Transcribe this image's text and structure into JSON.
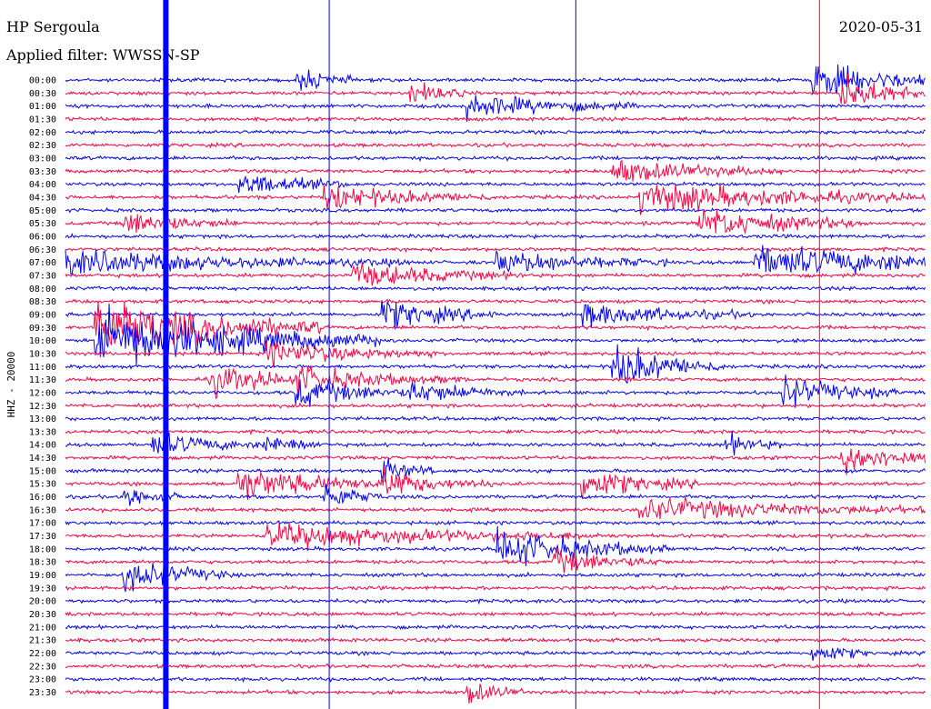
{
  "header": {
    "station": "HP Sergoula",
    "filter": "Applied filter: WWSSN-SP",
    "date": "2020-05-31"
  },
  "chart_data": {
    "type": "line",
    "title": "HP Sergoula",
    "subtitle": "Applied filter: WWSSN-SP",
    "ylabel": "HHZ - 20000",
    "xlabel": "",
    "date": "2020-05-31",
    "row_labels": [
      "00:00",
      "00:30",
      "01:00",
      "01:30",
      "02:00",
      "02:30",
      "03:00",
      "03:30",
      "04:00",
      "04:30",
      "05:00",
      "05:30",
      "06:00",
      "06:30",
      "07:00",
      "07:30",
      "08:00",
      "08:30",
      "09:00",
      "09:30",
      "10:00",
      "10:30",
      "11:00",
      "11:30",
      "12:00",
      "12:30",
      "13:00",
      "13:30",
      "14:00",
      "14:30",
      "15:00",
      "15:30",
      "16:00",
      "16:30",
      "17:00",
      "17:30",
      "18:00",
      "18:30",
      "19:00",
      "19:30",
      "20:00",
      "20:30",
      "21:00",
      "21:30",
      "22:00",
      "22:30",
      "23:00",
      "23:30"
    ],
    "row_minutes": 30,
    "series": [
      {
        "color": "#0000ff"
      },
      {
        "color": "#ff0040"
      }
    ],
    "events": [
      {
        "row": 0,
        "minute": 8,
        "amp": 3,
        "dur": 1
      },
      {
        "row": 0,
        "minute": 26,
        "amp": 4,
        "dur": 3
      },
      {
        "row": 1,
        "minute": 12,
        "amp": 3,
        "dur": 1
      },
      {
        "row": 1,
        "minute": 27,
        "amp": 4,
        "dur": 2
      },
      {
        "row": 2,
        "minute": 14,
        "amp": 3,
        "dur": 3
      },
      {
        "row": 7,
        "minute": 19,
        "amp": 3,
        "dur": 3
      },
      {
        "row": 8,
        "minute": 6,
        "amp": 3,
        "dur": 2
      },
      {
        "row": 9,
        "minute": 9,
        "amp": 3,
        "dur": 3
      },
      {
        "row": 9,
        "minute": 20,
        "amp": 4,
        "dur": 5
      },
      {
        "row": 11,
        "minute": 2,
        "amp": 3,
        "dur": 2
      },
      {
        "row": 11,
        "minute": 22,
        "amp": 4,
        "dur": 3
      },
      {
        "row": 14,
        "minute": 0,
        "amp": 3,
        "dur": 6
      },
      {
        "row": 14,
        "minute": 15,
        "amp": 3,
        "dur": 3
      },
      {
        "row": 14,
        "minute": 24,
        "amp": 4,
        "dur": 6
      },
      {
        "row": 15,
        "minute": 10,
        "amp": 3,
        "dur": 3
      },
      {
        "row": 18,
        "minute": 11,
        "amp": 4,
        "dur": 2
      },
      {
        "row": 18,
        "minute": 18,
        "amp": 3,
        "dur": 3
      },
      {
        "row": 19,
        "minute": 1,
        "amp": 8,
        "dur": 4
      },
      {
        "row": 20,
        "minute": 1,
        "amp": 8,
        "dur": 5
      },
      {
        "row": 21,
        "minute": 7,
        "amp": 3,
        "dur": 3
      },
      {
        "row": 22,
        "minute": 19,
        "amp": 6,
        "dur": 2
      },
      {
        "row": 23,
        "minute": 5,
        "amp": 4,
        "dur": 2
      },
      {
        "row": 23,
        "minute": 8,
        "amp": 3,
        "dur": 3
      },
      {
        "row": 24,
        "minute": 8,
        "amp": 4,
        "dur": 2
      },
      {
        "row": 24,
        "minute": 12,
        "amp": 3,
        "dur": 2
      },
      {
        "row": 24,
        "minute": 25,
        "amp": 4,
        "dur": 2
      },
      {
        "row": 28,
        "minute": 3,
        "amp": 3,
        "dur": 2
      },
      {
        "row": 28,
        "minute": 7,
        "amp": 3,
        "dur": 1
      },
      {
        "row": 28,
        "minute": 23,
        "amp": 3,
        "dur": 1
      },
      {
        "row": 29,
        "minute": 27,
        "amp": 4,
        "dur": 2
      },
      {
        "row": 30,
        "minute": 11,
        "amp": 3,
        "dur": 1
      },
      {
        "row": 31,
        "minute": 6,
        "amp": 4,
        "dur": 3
      },
      {
        "row": 31,
        "minute": 11,
        "amp": 3,
        "dur": 2
      },
      {
        "row": 31,
        "minute": 18,
        "amp": 4,
        "dur": 2
      },
      {
        "row": 32,
        "minute": 2,
        "amp": 3,
        "dur": 1
      },
      {
        "row": 32,
        "minute": 9,
        "amp": 4,
        "dur": 1
      },
      {
        "row": 33,
        "minute": 20,
        "amp": 3,
        "dur": 5
      },
      {
        "row": 35,
        "minute": 7,
        "amp": 3,
        "dur": 6
      },
      {
        "row": 36,
        "minute": 15,
        "amp": 5,
        "dur": 3
      },
      {
        "row": 37,
        "minute": 17,
        "amp": 3,
        "dur": 2
      },
      {
        "row": 38,
        "minute": 2,
        "amp": 4,
        "dur": 2
      },
      {
        "row": 44,
        "minute": 26,
        "amp": 3,
        "dur": 1
      },
      {
        "row": 47,
        "minute": 14,
        "amp": 3,
        "dur": 1
      }
    ],
    "glitches": [
      {
        "minute": 3.5,
        "amp": 390,
        "width": 6,
        "series": 0
      },
      {
        "minute": 9.2,
        "amp": 390,
        "width": 1,
        "series": 0
      },
      {
        "minute": 17.8,
        "amp": 390,
        "width": 1,
        "series": 0
      },
      {
        "minute": 26.3,
        "amp": 360,
        "width": 1,
        "series": 1
      }
    ]
  }
}
